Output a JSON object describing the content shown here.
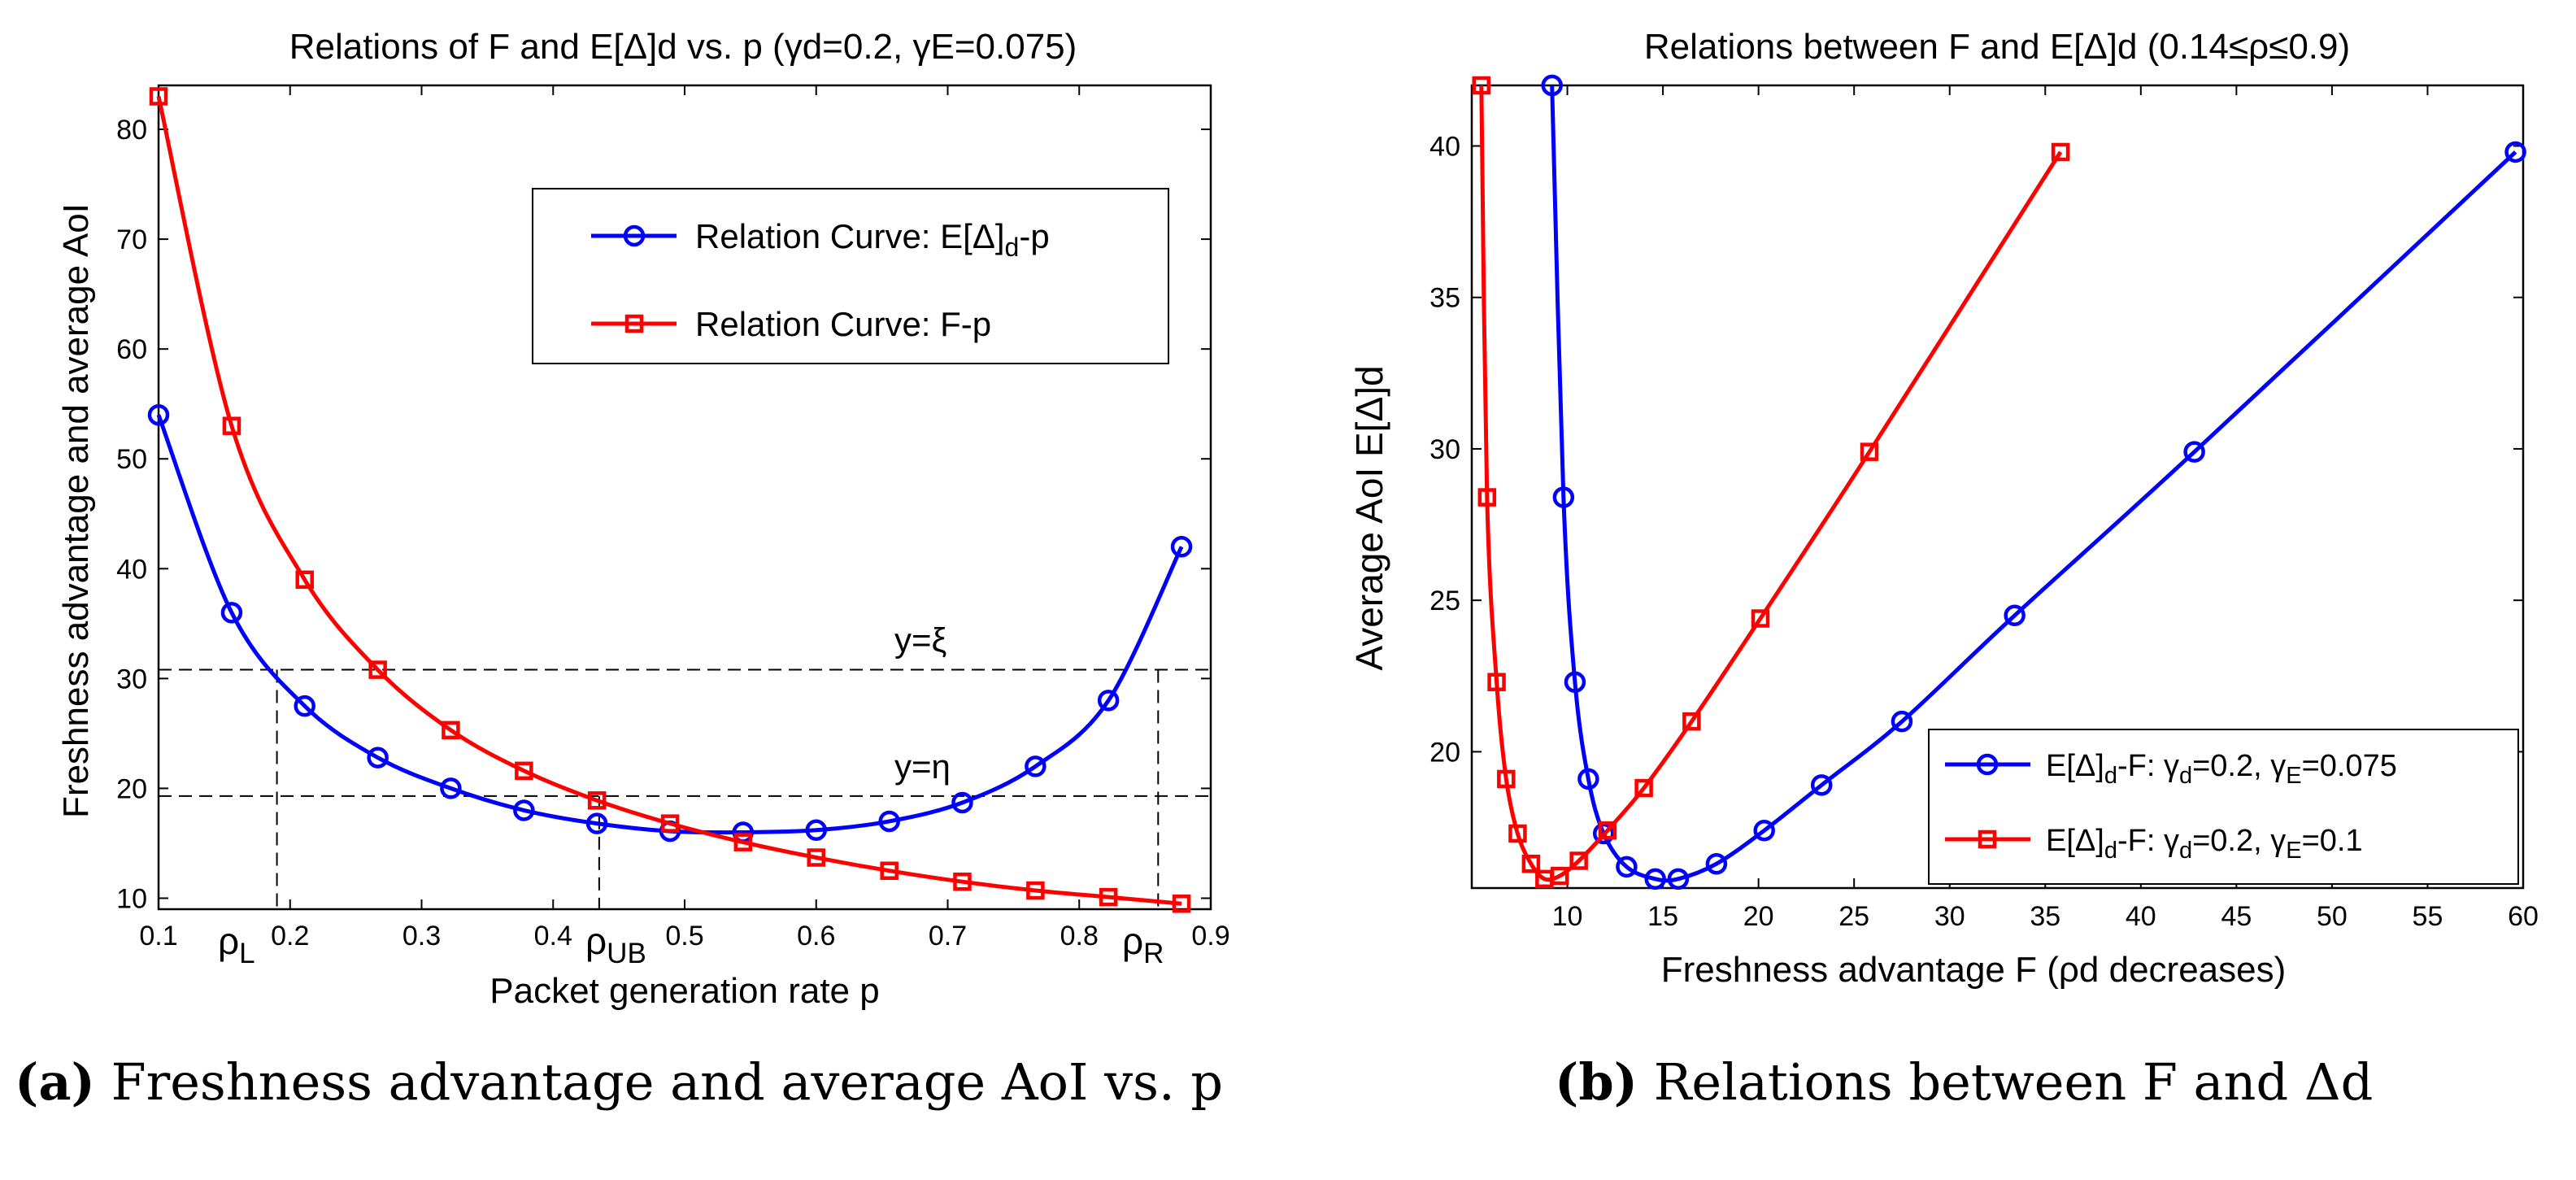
{
  "chart_data": [
    {
      "type": "line",
      "title": "Relations of F and E[Δ]d vs. p (γd=0.2, γE=0.075)",
      "xlabel": "Packet generation rate p",
      "ylabel": "Freshness advantage and average AoI",
      "xlim": [
        0.1,
        0.9
      ],
      "ylim": [
        9,
        84
      ],
      "xticks": [
        0.1,
        0.2,
        0.3,
        0.4,
        0.5,
        0.6,
        0.7,
        0.8,
        0.9
      ],
      "yticks": [
        10,
        20,
        30,
        40,
        50,
        60,
        70,
        80
      ],
      "grid": false,
      "legend_position": "top-right",
      "series": [
        {
          "name": "Relation Curve: E[Δ]d-p",
          "color": "#0000ff",
          "marker": "circle",
          "x": [
            0.1,
            0.1556,
            0.2111,
            0.2667,
            0.3222,
            0.3778,
            0.4333,
            0.4889,
            0.5444,
            0.6,
            0.6556,
            0.7111,
            0.7667,
            0.8222,
            0.8778
          ],
          "y": [
            54,
            36,
            27.5,
            22.8,
            20,
            18,
            16.8,
            16.1,
            16,
            16.2,
            17,
            18.7,
            22,
            28,
            42
          ]
        },
        {
          "name": "Relation Curve: F-p",
          "color": "#ff0000",
          "marker": "square",
          "x": [
            0.1,
            0.1556,
            0.2111,
            0.2667,
            0.3222,
            0.3778,
            0.4333,
            0.4889,
            0.5444,
            0.6,
            0.6556,
            0.7111,
            0.7667,
            0.8222,
            0.8778
          ],
          "y": [
            83,
            53,
            39,
            30.8,
            25.3,
            21.6,
            18.9,
            16.8,
            15.1,
            13.7,
            12.5,
            11.5,
            10.7,
            10.1,
            9.5
          ]
        }
      ],
      "reference_lines": [
        {
          "label": "y=ξ",
          "y": 30.8
        },
        {
          "label": "y=η",
          "y": 19.3
        }
      ],
      "annotations": {
        "rho_L": {
          "label": "ρL",
          "x": 0.19
        },
        "rho_UB": {
          "label": "ρUB",
          "x": 0.435
        },
        "rho_R": {
          "label": "ρR",
          "x": 0.86
        }
      },
      "caption": {
        "label": "(a)",
        "text": "Freshness advantage and average AoI vs. p"
      }
    },
    {
      "type": "line",
      "title": "Relations between F and E[Δ]d (0.14≤ρ≤0.9)",
      "xlabel": "Freshness advantage F (ρd decreases)",
      "ylabel": "Average AoI E[Δ]d",
      "xlim": [
        5,
        60
      ],
      "ylim": [
        15.5,
        42
      ],
      "xticks": [
        10,
        15,
        20,
        25,
        30,
        35,
        40,
        45,
        50,
        55,
        60
      ],
      "yticks": [
        20,
        25,
        30,
        35,
        40
      ],
      "grid": false,
      "legend_position": "bottom-right",
      "series": [
        {
          "name": "E[Δ]d-F: γd=0.2, γE=0.075",
          "color": "#0000ff",
          "marker": "circle",
          "x": [
            9.2,
            9.8,
            10.4,
            11.1,
            11.9,
            13.1,
            14.6,
            15.8,
            17.8,
            20.3,
            23.3,
            27.5,
            33.4,
            42.8,
            59.6
          ],
          "y": [
            42,
            28.4,
            22.3,
            19.1,
            17.3,
            16.2,
            15.8,
            15.8,
            16.3,
            17.4,
            18.9,
            21,
            24.5,
            29.9,
            39.8
          ]
        },
        {
          "name": "E[Δ]d-F: γd=0.2, γE=0.1",
          "color": "#ff0000",
          "marker": "square",
          "x": [
            5.5,
            5.8,
            6.3,
            6.8,
            7.4,
            8.1,
            8.8,
            9.6,
            10.6,
            12.1,
            14.0,
            16.5,
            20.1,
            25.8,
            35.8
          ],
          "y": [
            42,
            28.4,
            22.3,
            19.1,
            17.3,
            16.3,
            15.8,
            15.9,
            16.4,
            17.4,
            18.8,
            21,
            24.4,
            29.9,
            39.8
          ]
        }
      ],
      "caption": {
        "label": "(b)",
        "text": "Relations between F and Δd"
      }
    }
  ]
}
